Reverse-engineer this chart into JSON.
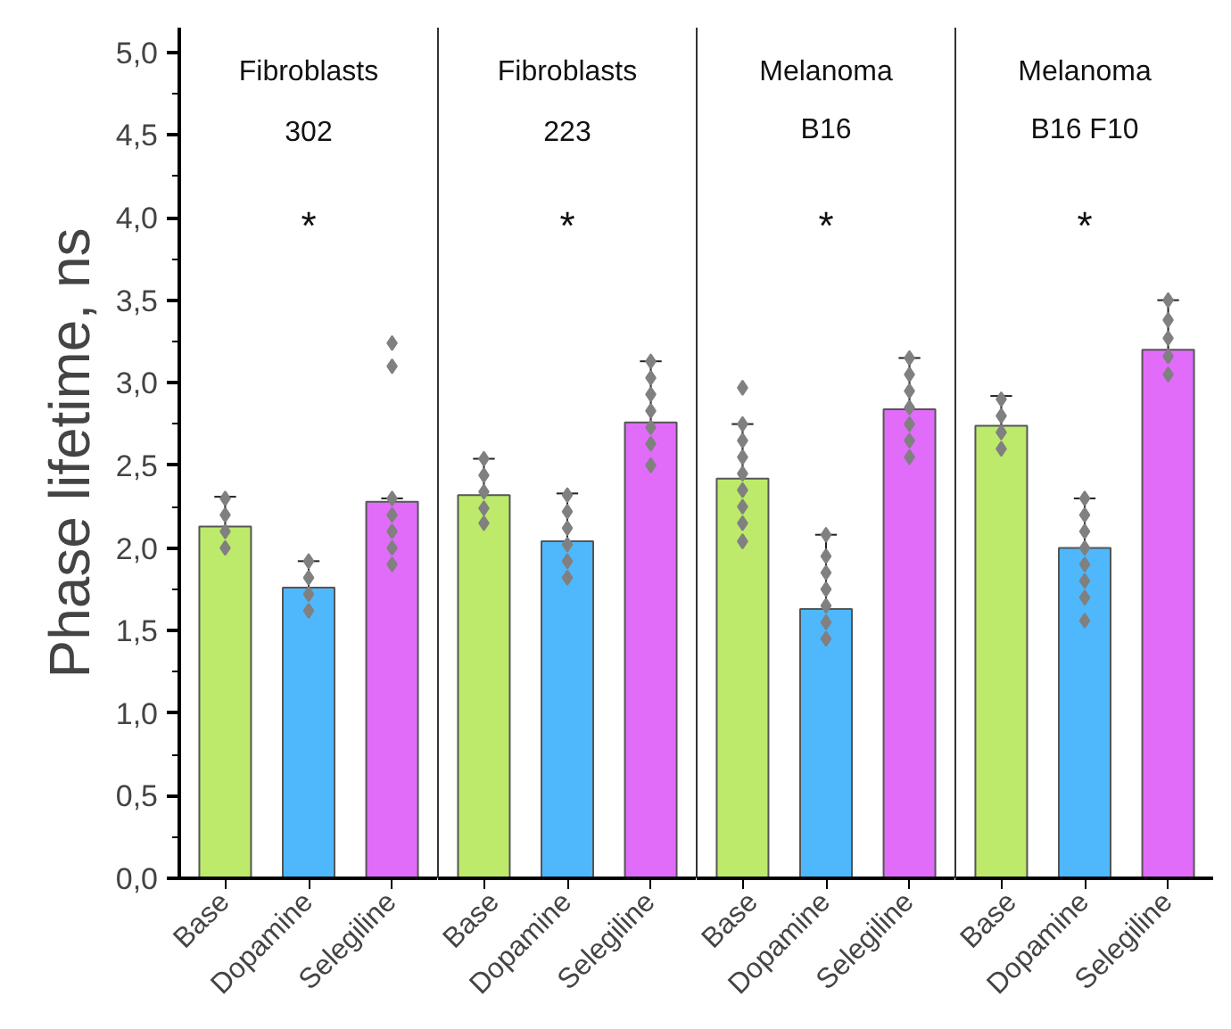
{
  "chart_data": [
    {
      "type": "bar",
      "title": "Fibroblasts",
      "subtitle": "302",
      "ylabel": "Phase lifetime, ns",
      "categories": [
        "Base",
        "Dopamine",
        "Selegiline"
      ],
      "values": [
        2.13,
        1.76,
        2.28
      ],
      "colors": [
        "#bdea6a",
        "#4fb8fc",
        "#e16cfa"
      ],
      "errors": [
        [
          2.13,
          2.31
        ],
        [
          1.76,
          1.92
        ],
        [
          2.28,
          2.3
        ]
      ],
      "series": [
        {
          "type": "scatter",
          "color": "#808080",
          "marker": "diamond",
          "x": [
            "Base",
            "Base",
            "Base",
            "Base",
            "Dopamine",
            "Dopamine",
            "Dopamine",
            "Dopamine",
            "Selegiline",
            "Selegiline",
            "Selegiline",
            "Selegiline",
            "Selegiline",
            "Selegiline",
            "Selegiline"
          ],
          "values": [
            2.3,
            2.2,
            2.1,
            2.0,
            1.92,
            1.82,
            1.72,
            1.62,
            3.24,
            3.1,
            2.3,
            2.2,
            2.1,
            2.0,
            1.9
          ]
        }
      ],
      "annotations": [
        "*"
      ],
      "ylim": [
        0,
        5.15
      ],
      "yticks": [
        {
          "value": 0,
          "label": "0,0"
        },
        {
          "value": 0.5,
          "label": "0,5"
        },
        {
          "value": 1.0,
          "label": "1,0"
        },
        {
          "value": 1.5,
          "label": "1,5"
        },
        {
          "value": 2.0,
          "label": "2,0"
        },
        {
          "value": 2.5,
          "label": "2,5"
        },
        {
          "value": 3.0,
          "label": "3,0"
        },
        {
          "value": 3.5,
          "label": "3,5"
        },
        {
          "value": 4.0,
          "label": "4,0"
        },
        {
          "value": 4.5,
          "label": "4,5"
        },
        {
          "value": 5.0,
          "label": "5,0"
        }
      ],
      "grid": false
    },
    {
      "type": "bar",
      "title": "Fibroblasts",
      "subtitle": "223",
      "categories": [
        "Base",
        "Dopamine",
        "Selegiline"
      ],
      "values": [
        2.32,
        2.04,
        2.76
      ],
      "colors": [
        "#bdea6a",
        "#4fb8fc",
        "#e16cfa"
      ],
      "errors": [
        [
          2.32,
          2.54
        ],
        [
          2.04,
          2.33
        ],
        [
          2.76,
          3.13
        ]
      ],
      "series": [
        {
          "type": "scatter",
          "color": "#808080",
          "marker": "diamond",
          "x": [
            "Base",
            "Base",
            "Base",
            "Base",
            "Base",
            "Dopamine",
            "Dopamine",
            "Dopamine",
            "Dopamine",
            "Dopamine",
            "Dopamine",
            "Selegiline",
            "Selegiline",
            "Selegiline",
            "Selegiline",
            "Selegiline",
            "Selegiline",
            "Selegiline"
          ],
          "values": [
            2.54,
            2.44,
            2.34,
            2.24,
            2.15,
            2.32,
            2.22,
            2.12,
            2.02,
            1.92,
            1.82,
            3.13,
            3.03,
            2.93,
            2.83,
            2.73,
            2.63,
            2.5
          ]
        }
      ],
      "annotations": [
        "*"
      ],
      "ylim": [
        0,
        5.15
      ],
      "tick_labels": "x",
      "grid": false
    },
    {
      "type": "bar",
      "title": "Melanoma",
      "subtitle": "B16",
      "categories": [
        "Base",
        "Dopamine",
        "Selegiline"
      ],
      "values": [
        2.42,
        1.63,
        2.84
      ],
      "colors": [
        "#bdea6a",
        "#4fb8fc",
        "#e16cfa"
      ],
      "errors": [
        [
          2.42,
          2.75
        ],
        [
          1.63,
          2.08
        ],
        [
          2.84,
          3.15
        ]
      ],
      "series": [
        {
          "type": "scatter",
          "color": "#808080",
          "marker": "diamond",
          "x": [
            "Base",
            "Base",
            "Base",
            "Base",
            "Base",
            "Base",
            "Base",
            "Base",
            "Base",
            "Dopamine",
            "Dopamine",
            "Dopamine",
            "Dopamine",
            "Dopamine",
            "Dopamine",
            "Dopamine",
            "Selegiline",
            "Selegiline",
            "Selegiline",
            "Selegiline",
            "Selegiline",
            "Selegiline",
            "Selegiline"
          ],
          "values": [
            2.97,
            2.75,
            2.65,
            2.55,
            2.45,
            2.35,
            2.25,
            2.15,
            2.04,
            2.08,
            1.95,
            1.85,
            1.75,
            1.65,
            1.55,
            1.45,
            3.15,
            3.05,
            2.95,
            2.85,
            2.75,
            2.65,
            2.55
          ]
        }
      ],
      "annotations": [
        "*"
      ],
      "ylim": [
        0,
        5.15
      ],
      "tick_labels": "x",
      "grid": false
    },
    {
      "type": "bar",
      "title": "Melanoma",
      "subtitle": "B16 F10",
      "categories": [
        "Base",
        "Dopamine",
        "Selegiline"
      ],
      "values": [
        2.74,
        2.0,
        3.2
      ],
      "colors": [
        "#bdea6a",
        "#4fb8fc",
        "#e16cfa"
      ],
      "errors": [
        [
          2.74,
          2.92
        ],
        [
          2.0,
          2.3
        ],
        [
          3.2,
          3.5
        ]
      ],
      "series": [
        {
          "type": "scatter",
          "color": "#808080",
          "marker": "diamond",
          "x": [
            "Base",
            "Base",
            "Base",
            "Base",
            "Dopamine",
            "Dopamine",
            "Dopamine",
            "Dopamine",
            "Dopamine",
            "Dopamine",
            "Dopamine",
            "Dopamine",
            "Selegiline",
            "Selegiline",
            "Selegiline",
            "Selegiline",
            "Selegiline"
          ],
          "values": [
            2.9,
            2.8,
            2.7,
            2.6,
            2.3,
            2.2,
            2.1,
            2.0,
            1.9,
            1.8,
            1.7,
            1.56,
            3.5,
            3.38,
            3.27,
            3.16,
            3.05
          ]
        }
      ],
      "annotations": [
        "*"
      ],
      "ylim": [
        0,
        5.15
      ],
      "tick_labels": "x",
      "grid": false
    }
  ]
}
